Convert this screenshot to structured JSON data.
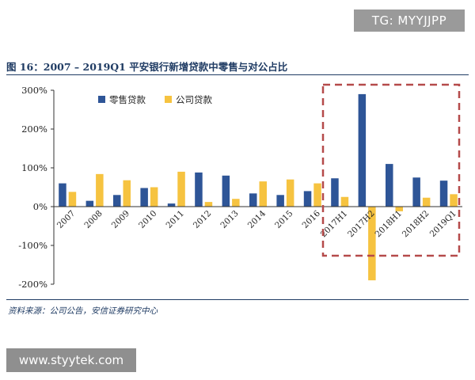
{
  "watermarks": {
    "top": "TG: MYYJJPP",
    "bottom": "www.styytek.com"
  },
  "figure": {
    "title": "图 16：2007 – 2019Q1 平安银行新增贷款中零售与对公占比",
    "source": "资料来源：公司公告，安信证券研究中心"
  },
  "colors": {
    "retail": "#2e5597",
    "corporate": "#f6c340",
    "highlight_box": "#b54a4a",
    "rule": "#1f3b63"
  },
  "chart_data": {
    "type": "bar",
    "title": "2007 – 2019Q1 平安银行新增贷款中零售与对公占比",
    "categories": [
      "2007",
      "2008",
      "2009",
      "2010",
      "2011",
      "2012",
      "2013",
      "2014",
      "2015",
      "2016",
      "2017H1",
      "2017H2",
      "2018H1",
      "2018H2",
      "2019Q1"
    ],
    "series": [
      {
        "name": "零售贷款",
        "values": [
          60,
          15,
          30,
          48,
          8,
          88,
          80,
          34,
          30,
          40,
          73,
          290,
          110,
          75,
          67
        ]
      },
      {
        "name": "公司贷款",
        "values": [
          38,
          84,
          68,
          50,
          90,
          12,
          20,
          65,
          70,
          60,
          25,
          -190,
          -12,
          23,
          32
        ]
      }
    ],
    "y_tick_labels": [
      "300%",
      "200%",
      "100%",
      "0%",
      "-100%",
      "-200%"
    ],
    "y_ticks": [
      300,
      200,
      100,
      0,
      -100,
      -200
    ],
    "ylim": [
      -200,
      300
    ],
    "y_unit": "%",
    "legend_position": "top-left",
    "grid": false,
    "highlighted_categories": [
      "2017H1",
      "2017H2",
      "2018H1",
      "2018H2",
      "2019Q1"
    ],
    "xlabel": "",
    "ylabel": ""
  }
}
